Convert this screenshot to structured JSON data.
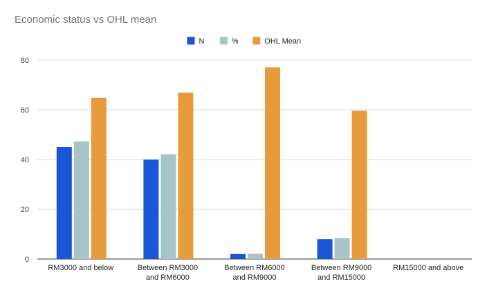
{
  "chart_data": {
    "type": "bar",
    "title": "Economic status vs OHL mean",
    "xlabel": "",
    "ylabel": "",
    "ylim": [
      0,
      80
    ],
    "yticks": [
      0,
      20,
      40,
      60,
      80
    ],
    "grid": true,
    "legend_position": "top",
    "categories": [
      [
        "RM3000 and below"
      ],
      [
        "Between RM3000",
        "and RM6000"
      ],
      [
        "Between RM6000",
        "and RM9000"
      ],
      [
        "Between RM9000",
        "and RM15000"
      ],
      [
        "RM15000 and above"
      ]
    ],
    "series": [
      {
        "name": "N",
        "color": "#1a56d6",
        "values": [
          45,
          40,
          2,
          8,
          0
        ]
      },
      {
        "name": "%",
        "color": "#a7c4c9",
        "values": [
          47.3,
          42.1,
          2.1,
          8.4,
          0
        ]
      },
      {
        "name": "OHL Mean",
        "color": "#e89b3c",
        "values": [
          64.8,
          66.9,
          77.1,
          59.6,
          0
        ]
      }
    ]
  }
}
